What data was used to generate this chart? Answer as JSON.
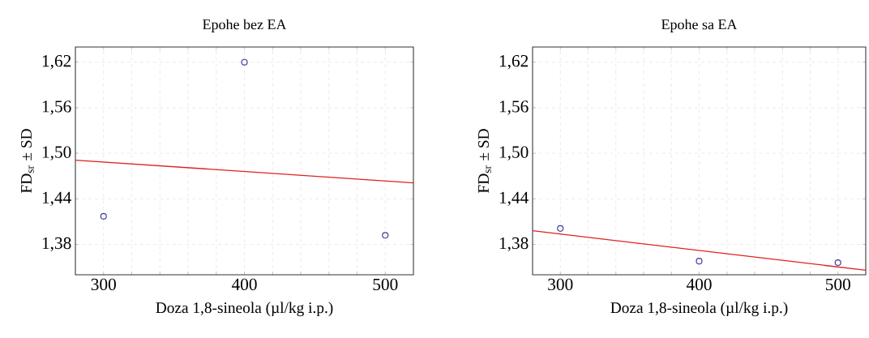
{
  "chart_data": [
    {
      "type": "scatter",
      "title": "Epohe bez EA",
      "xlabel": "Doza 1,8-sineola (µl/kg i.p.)",
      "ylabel": "FD$_{sr}$ ± SD",
      "xlim": [
        280,
        520
      ],
      "ylim": [
        1.34,
        1.64
      ],
      "xticks": [
        300,
        {
          "value": 320,
          "label": null
        },
        {
          "value": 340,
          "label": null
        },
        {
          "value": 360,
          "label": null
        },
        {
          "value": 380,
          "label": null
        },
        400,
        {
          "value": 420,
          "label": null
        },
        {
          "value": 440,
          "label": null
        },
        {
          "value": 460,
          "label": null
        },
        {
          "value": 480,
          "label": null
        },
        500
      ],
      "yticks": [
        {
          "value": 1.38,
          "label": "1,38"
        },
        {
          "value": 1.44,
          "label": "1,44"
        },
        {
          "value": 1.5,
          "label": "1,50"
        },
        {
          "value": 1.56,
          "label": "1,56"
        },
        {
          "value": 1.62,
          "label": "1,62"
        }
      ],
      "grid": true,
      "marker": "circle",
      "series": [
        {
          "color": "#3c3c9c",
          "x": [
            300,
            400,
            500
          ],
          "values": [
            1.417,
            1.62,
            1.392
          ]
        },
        {
          "type": "line",
          "marker": "none",
          "color": "#e02020",
          "x": [
            280,
            520
          ],
          "values": [
            1.491,
            1.461
          ]
        }
      ]
    },
    {
      "type": "scatter",
      "title": "Epohe sa EA",
      "xlabel": "Doza 1,8-sineola (µl/kg i.p.)",
      "ylabel": "FD$_{sr}$ ± SD",
      "xlim": [
        280,
        520
      ],
      "ylim": [
        1.34,
        1.64
      ],
      "xticks": [
        300,
        {
          "value": 320,
          "label": null
        },
        {
          "value": 340,
          "label": null
        },
        {
          "value": 360,
          "label": null
        },
        {
          "value": 380,
          "label": null
        },
        400,
        {
          "value": 420,
          "label": null
        },
        {
          "value": 440,
          "label": null
        },
        {
          "value": 460,
          "label": null
        },
        {
          "value": 480,
          "label": null
        },
        500
      ],
      "yticks": [
        {
          "value": 1.38,
          "label": "1,38"
        },
        {
          "value": 1.44,
          "label": "1,44"
        },
        {
          "value": 1.5,
          "label": "1,50"
        },
        {
          "value": 1.56,
          "label": "1,56"
        },
        {
          "value": 1.62,
          "label": "1,62"
        }
      ],
      "grid": true,
      "marker": "circle",
      "series": [
        {
          "color": "#3c3c9c",
          "x": [
            300,
            400,
            500
          ],
          "values": [
            1.401,
            1.358,
            1.356
          ]
        },
        {
          "type": "line",
          "marker": "none",
          "color": "#e02020",
          "x": [
            280,
            520
          ],
          "values": [
            1.398,
            1.346
          ]
        }
      ]
    }
  ]
}
